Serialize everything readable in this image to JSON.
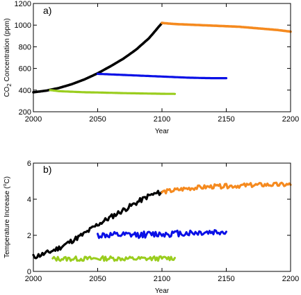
{
  "chart_data": [
    {
      "type": "line",
      "panel_label": "a)",
      "xlabel": "Year",
      "ylabel_parts": [
        "CO",
        "2",
        " Concentration (ppm)"
      ],
      "xlim": [
        2000,
        2200
      ],
      "ylim": [
        200,
        1200
      ],
      "xticks": [
        2000,
        2050,
        2100,
        2150,
        2200
      ],
      "yticks": [
        200,
        400,
        600,
        800,
        1000,
        1200
      ],
      "grid": false,
      "series": [
        {
          "color": "#000000",
          "width": 3.6,
          "noise": 0,
          "seed": 1,
          "x": [
            2000,
            2010,
            2020,
            2030,
            2040,
            2050,
            2060,
            2070,
            2080,
            2090,
            2100
          ],
          "y": [
            380,
            395,
            420,
            455,
            500,
            555,
            620,
            690,
            775,
            880,
            1020
          ]
        },
        {
          "color": "#0a10e6",
          "width": 3.2,
          "noise": 0,
          "seed": 2,
          "x": [
            2050,
            2060,
            2070,
            2080,
            2090,
            2100,
            2110,
            2120,
            2130,
            2140,
            2150
          ],
          "y": [
            550,
            545,
            540,
            535,
            530,
            525,
            520,
            515,
            512,
            510,
            510
          ]
        },
        {
          "color": "#9acd1e",
          "width": 3.2,
          "noise": 0,
          "seed": 3,
          "x": [
            2013,
            2020,
            2030,
            2040,
            2050,
            2060,
            2070,
            2080,
            2090,
            2100,
            2110
          ],
          "y": [
            400,
            390,
            385,
            380,
            378,
            375,
            372,
            370,
            368,
            366,
            365
          ]
        },
        {
          "color": "#f58a1f",
          "width": 3.6,
          "noise": 0,
          "seed": 4,
          "x": [
            2100,
            2110,
            2120,
            2130,
            2140,
            2150,
            2160,
            2170,
            2180,
            2190,
            2200
          ],
          "y": [
            1020,
            1010,
            1005,
            1000,
            995,
            990,
            985,
            975,
            965,
            955,
            940
          ]
        }
      ]
    },
    {
      "type": "line",
      "panel_label": "b)",
      "xlabel": "Year",
      "ylabel_parts": [
        "Temperature Increase (",
        "o",
        "C)"
      ],
      "xlim": [
        2000,
        2200
      ],
      "ylim": [
        0,
        6
      ],
      "xticks": [
        2000,
        2050,
        2100,
        2150,
        2200
      ],
      "yticks": [
        0,
        2,
        4,
        6
      ],
      "grid": false,
      "series": [
        {
          "color": "#000000",
          "width": 3.2,
          "noise": 0.14,
          "seed": 11,
          "x": [
            2000,
            2010,
            2020,
            2030,
            2040,
            2050,
            2060,
            2070,
            2080,
            2090,
            2100
          ],
          "y": [
            0.8,
            1.0,
            1.3,
            1.7,
            2.1,
            2.6,
            3.0,
            3.4,
            3.8,
            4.2,
            4.4
          ]
        },
        {
          "color": "#0a10e6",
          "width": 3.0,
          "noise": 0.18,
          "seed": 12,
          "x": [
            2050,
            2070,
            2090,
            2110,
            2130,
            2150
          ],
          "y": [
            2.0,
            2.0,
            2.05,
            2.1,
            2.15,
            2.2
          ]
        },
        {
          "color": "#9acd1e",
          "width": 3.0,
          "noise": 0.13,
          "seed": 13,
          "x": [
            2015,
            2040,
            2060,
            2080,
            2100,
            2110
          ],
          "y": [
            0.7,
            0.7,
            0.72,
            0.7,
            0.72,
            0.75
          ]
        },
        {
          "color": "#f58a1f",
          "width": 3.2,
          "noise": 0.12,
          "seed": 14,
          "x": [
            2100,
            2120,
            2140,
            2160,
            2180,
            2200
          ],
          "y": [
            4.4,
            4.6,
            4.7,
            4.75,
            4.8,
            4.8
          ]
        }
      ]
    }
  ]
}
